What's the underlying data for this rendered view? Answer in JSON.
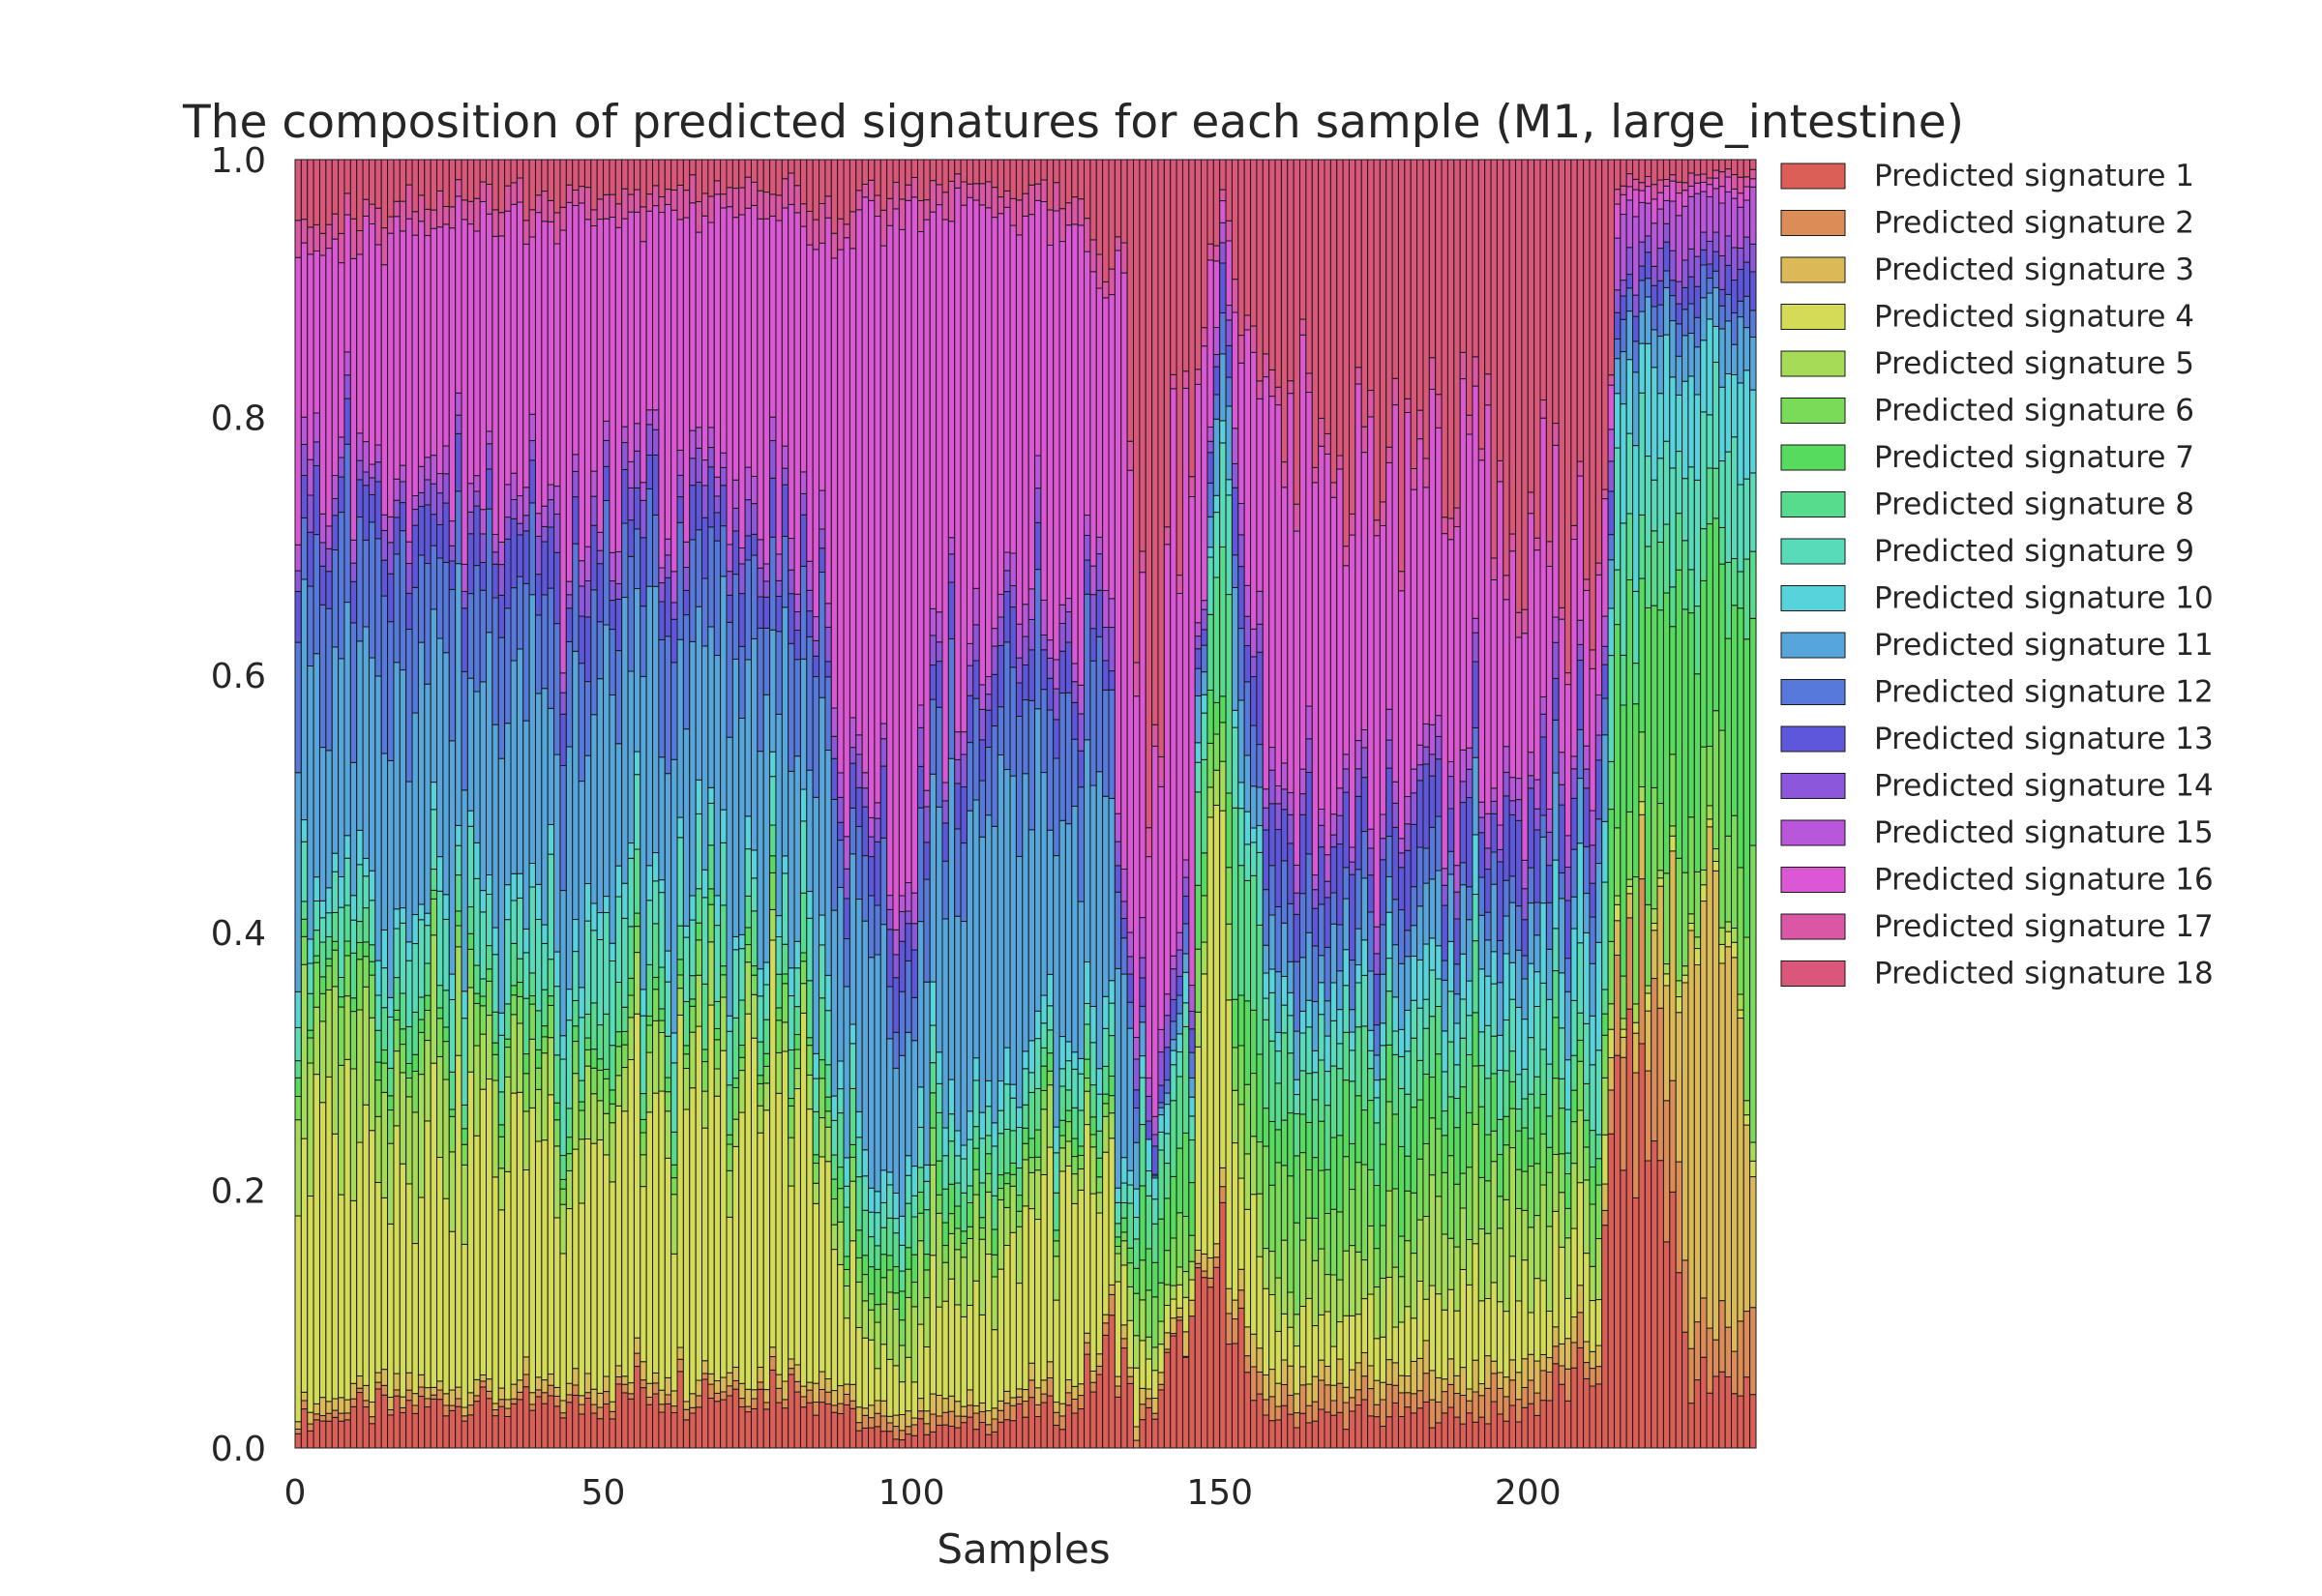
{
  "chart_data": {
    "type": "bar",
    "stacked": true,
    "normalized": true,
    "title": "The composition of predicted signatures for each sample (M1, large_intestine)",
    "xlabel": "Samples",
    "ylabel": "",
    "xlim": [
      0,
      237
    ],
    "ylim": [
      0,
      1
    ],
    "x_ticks": [
      "0",
      "50",
      "100",
      "150",
      "200"
    ],
    "x_tick_values": [
      0,
      50,
      100,
      150,
      200
    ],
    "y_ticks": [
      "0.0",
      "0.2",
      "0.4",
      "0.6",
      "0.8",
      "1.0"
    ],
    "y_tick_values": [
      0,
      0.2,
      0.4,
      0.6,
      0.8,
      1.0
    ],
    "n_samples": 237,
    "grid": false,
    "legend_position": "right",
    "series_colors": [
      "#db5f57",
      "#db8c57",
      "#dbb957",
      "#d3db57",
      "#a6db57",
      "#79db57",
      "#57db5f",
      "#57db8c",
      "#57dbb9",
      "#57d3db",
      "#57a6db",
      "#5779db",
      "#5f57db",
      "#8c57db",
      "#b957db",
      "#db57d3",
      "#db57a6",
      "#db5779"
    ],
    "series": [
      {
        "name": "Predicted signature 1",
        "profile": [
          [
            0,
            0.02
          ],
          [
            12,
            0.03
          ],
          [
            28,
            0.04
          ],
          [
            40,
            0.03
          ],
          [
            60,
            0.05
          ],
          [
            80,
            0.05
          ],
          [
            95,
            0.01
          ],
          [
            110,
            0.02
          ],
          [
            125,
            0.03
          ],
          [
            134,
            0.08
          ],
          [
            136,
            0.0
          ],
          [
            145,
            0.12
          ],
          [
            150,
            0.2
          ],
          [
            155,
            0.03
          ],
          [
            175,
            0.03
          ],
          [
            195,
            0.03
          ],
          [
            211,
            0.06
          ],
          [
            214,
            0.3
          ],
          [
            222,
            0.25
          ],
          [
            226,
            0.06
          ],
          [
            236,
            0.05
          ]
        ]
      },
      {
        "name": "Predicted signature 2",
        "profile": [
          [
            0,
            0.005
          ],
          [
            136,
            0.01
          ],
          [
            145,
            0.0
          ],
          [
            150,
            0.02
          ],
          [
            175,
            0.02
          ],
          [
            212,
            0.02
          ],
          [
            214,
            0.08
          ],
          [
            220,
            0.12
          ],
          [
            226,
            0.05
          ],
          [
            236,
            0.05
          ]
        ]
      },
      {
        "name": "Predicted signature 3",
        "profile": [
          [
            0,
            0.01
          ],
          [
            136,
            0.01
          ],
          [
            150,
            0.02
          ],
          [
            212,
            0.02
          ],
          [
            214,
            0.02
          ],
          [
            220,
            0.05
          ],
          [
            226,
            0.28
          ],
          [
            230,
            0.35
          ],
          [
            236,
            0.15
          ]
        ]
      },
      {
        "name": "Predicted signature 4",
        "profile": [
          [
            0,
            0.2
          ],
          [
            20,
            0.22
          ],
          [
            40,
            0.2
          ],
          [
            60,
            0.2
          ],
          [
            80,
            0.25
          ],
          [
            86,
            0.12
          ],
          [
            95,
            0.03
          ],
          [
            110,
            0.1
          ],
          [
            125,
            0.15
          ],
          [
            134,
            0.05
          ],
          [
            138,
            0.02
          ],
          [
            145,
            0.02
          ],
          [
            148,
            0.4
          ],
          [
            152,
            0.15
          ],
          [
            158,
            0.05
          ],
          [
            175,
            0.05
          ],
          [
            195,
            0.08
          ],
          [
            212,
            0.05
          ],
          [
            214,
            0.01
          ],
          [
            236,
            0.01
          ]
        ]
      },
      {
        "name": "Predicted signature 5",
        "profile": [
          [
            0,
            0.1
          ],
          [
            20,
            0.08
          ],
          [
            40,
            0.05
          ],
          [
            60,
            0.04
          ],
          [
            80,
            0.03
          ],
          [
            86,
            0.02
          ],
          [
            95,
            0.05
          ],
          [
            110,
            0.05
          ],
          [
            125,
            0.03
          ],
          [
            134,
            0.02
          ],
          [
            138,
            0.02
          ],
          [
            145,
            0.02
          ],
          [
            150,
            0.05
          ],
          [
            158,
            0.05
          ],
          [
            175,
            0.05
          ],
          [
            195,
            0.08
          ],
          [
            212,
            0.04
          ],
          [
            214,
            0.01
          ],
          [
            236,
            0.01
          ]
        ]
      },
      {
        "name": "Predicted signature 6",
        "profile": [
          [
            0,
            0.03
          ],
          [
            40,
            0.02
          ],
          [
            80,
            0.02
          ],
          [
            86,
            0.02
          ],
          [
            95,
            0.02
          ],
          [
            134,
            0.01
          ],
          [
            138,
            0.04
          ],
          [
            145,
            0.05
          ],
          [
            150,
            0.03
          ],
          [
            158,
            0.08
          ],
          [
            175,
            0.06
          ],
          [
            195,
            0.05
          ],
          [
            212,
            0.03
          ],
          [
            214,
            0.05
          ],
          [
            220,
            0.08
          ],
          [
            230,
            0.1
          ],
          [
            236,
            0.15
          ]
        ]
      },
      {
        "name": "Predicted signature 7",
        "profile": [
          [
            0,
            0.01
          ],
          [
            86,
            0.01
          ],
          [
            95,
            0.02
          ],
          [
            134,
            0.01
          ],
          [
            138,
            0.05
          ],
          [
            145,
            0.05
          ],
          [
            158,
            0.05
          ],
          [
            175,
            0.06
          ],
          [
            195,
            0.05
          ],
          [
            212,
            0.02
          ],
          [
            214,
            0.2
          ],
          [
            220,
            0.22
          ],
          [
            230,
            0.15
          ],
          [
            236,
            0.2
          ]
        ]
      },
      {
        "name": "Predicted signature 8",
        "profile": [
          [
            0,
            0.02
          ],
          [
            40,
            0.03
          ],
          [
            80,
            0.04
          ],
          [
            86,
            0.03
          ],
          [
            95,
            0.03
          ],
          [
            134,
            0.02
          ],
          [
            138,
            0.04
          ],
          [
            145,
            0.06
          ],
          [
            150,
            0.15
          ],
          [
            158,
            0.06
          ],
          [
            175,
            0.05
          ],
          [
            195,
            0.04
          ],
          [
            212,
            0.02
          ],
          [
            214,
            0.05
          ],
          [
            236,
            0.05
          ]
        ]
      },
      {
        "name": "Predicted signature 9",
        "profile": [
          [
            0,
            0.03
          ],
          [
            40,
            0.06
          ],
          [
            80,
            0.05
          ],
          [
            86,
            0.03
          ],
          [
            95,
            0.02
          ],
          [
            110,
            0.03
          ],
          [
            134,
            0.02
          ],
          [
            138,
            0.02
          ],
          [
            145,
            0.03
          ],
          [
            150,
            0.08
          ],
          [
            158,
            0.03
          ],
          [
            175,
            0.03
          ],
          [
            195,
            0.04
          ],
          [
            212,
            0.06
          ],
          [
            214,
            0.08
          ],
          [
            220,
            0.08
          ],
          [
            236,
            0.08
          ]
        ]
      },
      {
        "name": "Predicted signature 10",
        "profile": [
          [
            0,
            0.02
          ],
          [
            40,
            0.02
          ],
          [
            80,
            0.02
          ],
          [
            95,
            0.02
          ],
          [
            134,
            0.02
          ],
          [
            145,
            0.02
          ],
          [
            158,
            0.02
          ],
          [
            175,
            0.03
          ],
          [
            195,
            0.05
          ],
          [
            212,
            0.06
          ],
          [
            214,
            0.08
          ],
          [
            236,
            0.06
          ]
        ]
      },
      {
        "name": "Predicted signature 11",
        "profile": [
          [
            0,
            0.14
          ],
          [
            20,
            0.18
          ],
          [
            40,
            0.15
          ],
          [
            60,
            0.18
          ],
          [
            80,
            0.16
          ],
          [
            86,
            0.13
          ],
          [
            95,
            0.18
          ],
          [
            110,
            0.2
          ],
          [
            125,
            0.2
          ],
          [
            134,
            0.12
          ],
          [
            138,
            0.0
          ],
          [
            145,
            0.02
          ],
          [
            150,
            0.08
          ],
          [
            158,
            0.04
          ],
          [
            175,
            0.04
          ],
          [
            195,
            0.05
          ],
          [
            212,
            0.05
          ],
          [
            214,
            0.04
          ],
          [
            236,
            0.04
          ]
        ]
      },
      {
        "name": "Predicted signature 12",
        "profile": [
          [
            0,
            0.08
          ],
          [
            20,
            0.1
          ],
          [
            40,
            0.07
          ],
          [
            60,
            0.08
          ],
          [
            80,
            0.08
          ],
          [
            86,
            0.06
          ],
          [
            95,
            0.05
          ],
          [
            110,
            0.06
          ],
          [
            125,
            0.1
          ],
          [
            134,
            0.05
          ],
          [
            138,
            0.0
          ],
          [
            145,
            0.02
          ],
          [
            150,
            0.04
          ],
          [
            158,
            0.05
          ],
          [
            175,
            0.04
          ],
          [
            195,
            0.03
          ],
          [
            212,
            0.03
          ],
          [
            214,
            0.02
          ],
          [
            236,
            0.02
          ]
        ]
      },
      {
        "name": "Predicted signature 13",
        "profile": [
          [
            0,
            0.04
          ],
          [
            40,
            0.04
          ],
          [
            80,
            0.03
          ],
          [
            86,
            0.02
          ],
          [
            95,
            0.04
          ],
          [
            110,
            0.04
          ],
          [
            125,
            0.03
          ],
          [
            134,
            0.02
          ],
          [
            138,
            0.02
          ],
          [
            145,
            0.02
          ],
          [
            150,
            0.04
          ],
          [
            158,
            0.06
          ],
          [
            175,
            0.06
          ],
          [
            195,
            0.06
          ],
          [
            212,
            0.04
          ],
          [
            214,
            0.02
          ],
          [
            236,
            0.02
          ]
        ]
      },
      {
        "name": "Predicted signature 14",
        "profile": [
          [
            0,
            0.02
          ],
          [
            40,
            0.02
          ],
          [
            86,
            0.02
          ],
          [
            95,
            0.02
          ],
          [
            134,
            0.02
          ],
          [
            145,
            0.02
          ],
          [
            158,
            0.02
          ],
          [
            175,
            0.02
          ],
          [
            195,
            0.02
          ],
          [
            212,
            0.02
          ],
          [
            214,
            0.02
          ],
          [
            236,
            0.02
          ]
        ]
      },
      {
        "name": "Predicted signature 15",
        "profile": [
          [
            0,
            0.02
          ],
          [
            40,
            0.02
          ],
          [
            86,
            0.02
          ],
          [
            95,
            0.02
          ],
          [
            134,
            0.02
          ],
          [
            145,
            0.02
          ],
          [
            158,
            0.02
          ],
          [
            175,
            0.02
          ],
          [
            195,
            0.02
          ],
          [
            212,
            0.02
          ],
          [
            214,
            0.04
          ],
          [
            236,
            0.04
          ]
        ]
      },
      {
        "name": "Predicted signature 16",
        "profile": [
          [
            0,
            0.2
          ],
          [
            20,
            0.18
          ],
          [
            40,
            0.25
          ],
          [
            60,
            0.25
          ],
          [
            80,
            0.22
          ],
          [
            86,
            0.3
          ],
          [
            95,
            0.45
          ],
          [
            110,
            0.35
          ],
          [
            125,
            0.25
          ],
          [
            134,
            0.35
          ],
          [
            138,
            0.3
          ],
          [
            145,
            0.4
          ],
          [
            150,
            0.02
          ],
          [
            158,
            0.3
          ],
          [
            175,
            0.3
          ],
          [
            195,
            0.25
          ],
          [
            212,
            0.1
          ],
          [
            214,
            0.02
          ],
          [
            236,
            0.01
          ]
        ]
      },
      {
        "name": "Predicted signature 17",
        "profile": [
          [
            0,
            0.02
          ],
          [
            40,
            0.02
          ],
          [
            86,
            0.02
          ],
          [
            95,
            0.02
          ],
          [
            134,
            0.02
          ],
          [
            145,
            0.02
          ],
          [
            158,
            0.02
          ],
          [
            175,
            0.02
          ],
          [
            195,
            0.02
          ],
          [
            212,
            0.01
          ],
          [
            214,
            0.01
          ],
          [
            236,
            0.01
          ]
        ]
      },
      {
        "name": "Predicted signature 18",
        "profile": [
          [
            0,
            0.04
          ],
          [
            40,
            0.03
          ],
          [
            80,
            0.02
          ],
          [
            86,
            0.05
          ],
          [
            95,
            0.03
          ],
          [
            110,
            0.02
          ],
          [
            125,
            0.03
          ],
          [
            134,
            0.08
          ],
          [
            138,
            0.45
          ],
          [
            145,
            0.25
          ],
          [
            150,
            0.05
          ],
          [
            158,
            0.2
          ],
          [
            175,
            0.28
          ],
          [
            195,
            0.3
          ],
          [
            212,
            0.35
          ],
          [
            214,
            0.02
          ],
          [
            236,
            0.01
          ]
        ]
      }
    ]
  }
}
